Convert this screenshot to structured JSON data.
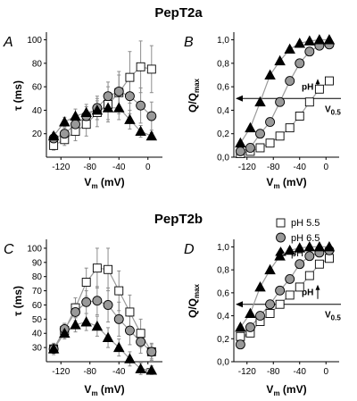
{
  "titles": {
    "top": "PepT2a",
    "bottom": "PepT2b"
  },
  "legend": [
    {
      "label": "pH 5.5",
      "marker": "square",
      "fill": "#ffffff"
    },
    {
      "label": "pH 6.5",
      "marker": "circle",
      "fill": "#999999"
    },
    {
      "label": "pH 7.6",
      "marker": "triangle",
      "fill": "#000000"
    }
  ],
  "colors": {
    "line": "#9a9a9a",
    "stroke": "#000000",
    "errorbar": "#8c8c8c"
  },
  "chart_data": [
    {
      "id": "A",
      "panel_label": "A",
      "type": "line",
      "ylabel_main": "τ",
      "ylabel_unit": " (ms)",
      "xlabel_main": "V",
      "xlabel_sub": "m",
      "xlabel_unit": " (mV)",
      "xlim": [
        -140,
        20
      ],
      "ylim": [
        0,
        105
      ],
      "xticks": [
        -120,
        -80,
        -40,
        0
      ],
      "yticks": [
        20,
        40,
        60,
        80,
        100
      ],
      "x": [
        -130,
        -115,
        -100,
        -85,
        -70,
        -55,
        -40,
        -25,
        -10,
        5
      ],
      "series": [
        {
          "name": "pH 5.5",
          "values": [
            10,
            15,
            22,
            28,
            38,
            45,
            55,
            68,
            77,
            75
          ],
          "errors": [
            4,
            5,
            8,
            10,
            12,
            15,
            18,
            22,
            22,
            20
          ]
        },
        {
          "name": "pH 6.5",
          "values": [
            16,
            20,
            28,
            35,
            42,
            52,
            56,
            52,
            44,
            35
          ],
          "errors": [
            4,
            5,
            7,
            8,
            10,
            12,
            14,
            15,
            15,
            12
          ]
        },
        {
          "name": "pH 7.6",
          "values": [
            18,
            30,
            35,
            38,
            40,
            42,
            42,
            32,
            22,
            18
          ],
          "errors": [
            3,
            4,
            6,
            7,
            8,
            10,
            10,
            8,
            5,
            3
          ]
        }
      ]
    },
    {
      "id": "B",
      "panel_label": "B",
      "type": "line",
      "ylabel_main": "Q/Q",
      "ylabel_sub": "max",
      "xlabel_main": "V",
      "xlabel_sub": "m",
      "xlabel_unit": " (mV)",
      "xlim": [
        -140,
        20
      ],
      "ylim": [
        0,
        1.05
      ],
      "xticks": [
        -120,
        -80,
        -40,
        0
      ],
      "yticks": [
        0.0,
        0.2,
        0.4,
        0.6,
        0.8,
        1.0
      ],
      "ytick_labels": [
        "0,0",
        "0,2",
        "0,4",
        "0,6",
        "0,8",
        "1,0"
      ],
      "annotation_ph": "pH",
      "annotation_v_main": "V",
      "annotation_v_sub": "0.5",
      "reference_y": 0.5,
      "x": [
        -130,
        -115,
        -100,
        -85,
        -70,
        -55,
        -40,
        -25,
        -10,
        5
      ],
      "series": [
        {
          "name": "pH 5.5",
          "values": [
            0.03,
            0.05,
            0.08,
            0.12,
            0.18,
            0.25,
            0.35,
            0.47,
            0.58,
            0.65
          ]
        },
        {
          "name": "pH 6.5",
          "values": [
            0.05,
            0.08,
            0.2,
            0.3,
            0.47,
            0.65,
            0.8,
            0.9,
            0.95,
            0.96
          ]
        },
        {
          "name": "pH 7.6",
          "values": [
            0.12,
            0.25,
            0.47,
            0.7,
            0.82,
            0.92,
            0.97,
            0.99,
            1.0,
            1.0
          ]
        }
      ]
    },
    {
      "id": "C",
      "panel_label": "C",
      "type": "line",
      "ylabel_main": "τ",
      "ylabel_unit": " (ms)",
      "xlabel_main": "V",
      "xlabel_sub": "m",
      "xlabel_unit": " (mV)",
      "xlim": [
        -140,
        20
      ],
      "ylim": [
        20,
        105
      ],
      "xticks": [
        -120,
        -80,
        -40,
        0
      ],
      "yticks": [
        30,
        40,
        50,
        60,
        70,
        80,
        90,
        100
      ],
      "x": [
        -130,
        -115,
        -100,
        -85,
        -70,
        -55,
        -40,
        -25,
        -10,
        5
      ],
      "series": [
        {
          "name": "pH 5.5",
          "values": [
            29,
            42,
            58,
            76,
            86,
            85,
            70,
            55,
            40,
            27
          ],
          "errors": [
            4,
            5,
            7,
            10,
            14,
            15,
            14,
            12,
            10,
            6
          ]
        },
        {
          "name": "pH 6.5",
          "values": [
            29,
            43,
            55,
            62,
            63,
            60,
            50,
            42,
            34,
            27
          ],
          "errors": [
            3,
            4,
            6,
            8,
            10,
            12,
            12,
            10,
            8,
            5
          ]
        },
        {
          "name": "pH 7.6",
          "values": [
            29,
            40,
            46,
            48,
            45,
            37,
            30,
            22,
            15,
            14
          ],
          "errors": [
            3,
            4,
            5,
            6,
            7,
            7,
            6,
            5,
            4,
            3
          ]
        }
      ]
    },
    {
      "id": "D",
      "panel_label": "D",
      "type": "line",
      "ylabel_main": "Q/Q",
      "ylabel_sub": "max",
      "xlabel_main": "V",
      "xlabel_sub": "m",
      "xlabel_unit": " (mV)",
      "xlim": [
        -140,
        20
      ],
      "ylim": [
        0,
        1.05
      ],
      "xticks": [
        -120,
        -80,
        -40,
        0
      ],
      "yticks": [
        0.0,
        0.2,
        0.4,
        0.6,
        0.8,
        1.0
      ],
      "ytick_labels": [
        "0,0",
        "0,2",
        "0,4",
        "0,6",
        "0,8",
        "1,0"
      ],
      "annotation_ph": "pH",
      "annotation_v_main": "V",
      "annotation_v_sub": "0.5",
      "reference_y": 0.5,
      "x": [
        -130,
        -115,
        -100,
        -85,
        -70,
        -55,
        -40,
        -25,
        -10,
        5
      ],
      "series": [
        {
          "name": "pH 5.5",
          "values": [
            0.22,
            0.25,
            0.35,
            0.42,
            0.5,
            0.58,
            0.65,
            0.75,
            0.85,
            0.9
          ]
        },
        {
          "name": "pH 6.5",
          "values": [
            0.15,
            0.3,
            0.4,
            0.5,
            0.62,
            0.72,
            0.85,
            0.92,
            0.95,
            0.97
          ]
        },
        {
          "name": "pH 7.6",
          "values": [
            0.3,
            0.42,
            0.65,
            0.8,
            0.92,
            0.97,
            0.99,
            1.0,
            1.0,
            1.0
          ]
        }
      ]
    }
  ]
}
